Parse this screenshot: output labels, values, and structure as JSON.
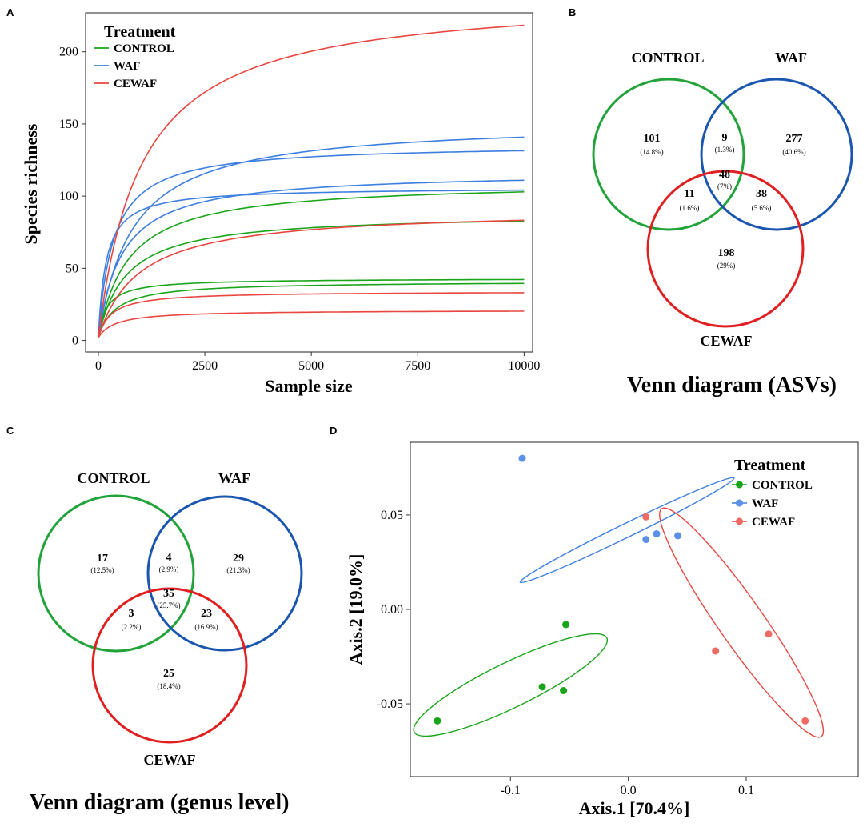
{
  "colors": {
    "control": "#1aa41a",
    "waf": "#3d7fe0",
    "cewaf": "#e8463f",
    "venn_control": "#22a33a",
    "venn_waf": "#1a56b0",
    "venn_cewaf": "#e02020"
  },
  "panels": {
    "a": "A",
    "b": "B",
    "c": "C",
    "d": "D"
  },
  "chart_data": [
    {
      "id": "A",
      "type": "line",
      "title": "",
      "xlabel": "Sample size",
      "ylabel": "Species richness",
      "xlim": [
        -300,
        10200
      ],
      "ylim": [
        -8,
        227
      ],
      "xticks": [
        "0",
        "2500",
        "5000",
        "7500",
        "10000"
      ],
      "xtick_values": [
        0,
        2500,
        5000,
        7500,
        10000
      ],
      "yticks": [
        "0",
        "50",
        "100",
        "150",
        "200"
      ],
      "ytick_values": [
        0,
        50,
        100,
        150,
        200
      ],
      "legend": {
        "title": "Treatment",
        "position": "top-left",
        "labels": [
          "CONTROL",
          "WAF",
          "CEWAF"
        ]
      },
      "series": [
        {
          "name": "CONTROL",
          "group": "control",
          "asymptote": 110,
          "half": 700,
          "end": 103
        },
        {
          "name": "CONTROL",
          "group": "control",
          "asymptote": 88,
          "half": 650,
          "end": 82
        },
        {
          "name": "CONTROL",
          "group": "control",
          "asymptote": 43,
          "half": 200,
          "end": 42
        },
        {
          "name": "CONTROL",
          "group": "control",
          "asymptote": 41,
          "half": 400,
          "end": 40
        },
        {
          "name": "WAF",
          "group": "waf",
          "asymptote": 152,
          "half": 800,
          "end": 141
        },
        {
          "name": "WAF",
          "group": "waf",
          "asymptote": 136,
          "half": 350,
          "end": 132
        },
        {
          "name": "WAF",
          "group": "waf",
          "asymptote": 117,
          "half": 550,
          "end": 111
        },
        {
          "name": "WAF",
          "group": "waf",
          "asymptote": 106,
          "half": 180,
          "end": 105
        },
        {
          "name": "CEWAF",
          "group": "cewaf",
          "asymptote": 240,
          "half": 1000,
          "end": 217
        },
        {
          "name": "CEWAF",
          "group": "cewaf",
          "asymptote": 91,
          "half": 950,
          "end": 83
        },
        {
          "name": "CEWAF",
          "group": "cewaf",
          "asymptote": 34,
          "half": 300,
          "end": 33
        },
        {
          "name": "CEWAF",
          "group": "cewaf",
          "asymptote": 21,
          "half": 400,
          "end": 20
        }
      ]
    },
    {
      "id": "B",
      "type": "venn",
      "title": "Venn diagram (ASVs)",
      "sets": [
        "CONTROL",
        "WAF",
        "CEWAF"
      ],
      "regions": [
        {
          "key": "control_only",
          "count": "101",
          "pct": "(14.8%)"
        },
        {
          "key": "control_waf",
          "count": "9",
          "pct": "(1.3%)"
        },
        {
          "key": "waf_only",
          "count": "277",
          "pct": "(40.6%)"
        },
        {
          "key": "all",
          "count": "48",
          "pct": "(7%)"
        },
        {
          "key": "control_cewaf",
          "count": "11",
          "pct": "(1.6%)"
        },
        {
          "key": "waf_cewaf",
          "count": "38",
          "pct": "(5.6%)"
        },
        {
          "key": "cewaf_only",
          "count": "198",
          "pct": "(29%)"
        }
      ]
    },
    {
      "id": "C",
      "type": "venn",
      "title": "Venn diagram (genus level)",
      "sets": [
        "CONTROL",
        "WAF",
        "CEWAF"
      ],
      "regions": [
        {
          "key": "control_only",
          "count": "17",
          "pct": "(12.5%)"
        },
        {
          "key": "control_waf",
          "count": "4",
          "pct": "(2.9%)"
        },
        {
          "key": "waf_only",
          "count": "29",
          "pct": "(21.3%)"
        },
        {
          "key": "all",
          "count": "35",
          "pct": "(25.7%)"
        },
        {
          "key": "control_cewaf",
          "count": "3",
          "pct": "(2.2%)"
        },
        {
          "key": "waf_cewaf",
          "count": "23",
          "pct": "(16.9%)"
        },
        {
          "key": "cewaf_only",
          "count": "25",
          "pct": "(18.4%)"
        }
      ]
    },
    {
      "id": "D",
      "type": "scatter",
      "title": "",
      "xlabel": "Axis.1 [70.4%]",
      "ylabel": "Axis.2 [19.0%]",
      "xlim": [
        -0.185,
        0.195
      ],
      "ylim": [
        -0.0885,
        0.0885
      ],
      "xticks": [
        "-0.1",
        "0.0",
        "0.1"
      ],
      "xtick_values": [
        -0.1,
        0.0,
        0.1
      ],
      "yticks": [
        "-0.05",
        "0.00",
        "0.05"
      ],
      "ytick_values": [
        -0.05,
        0.0,
        0.05
      ],
      "legend": {
        "title": "Treatment",
        "position": "top-right",
        "labels": [
          "CONTROL",
          "WAF",
          "CEWAF"
        ]
      },
      "series": [
        {
          "name": "CONTROL",
          "group": "control",
          "x": [
            -0.162,
            -0.073,
            -0.055,
            -0.053
          ],
          "y": [
            -0.059,
            -0.041,
            -0.043,
            -0.008
          ],
          "ellipse": {
            "cx": -0.1,
            "cy": -0.04,
            "rx": 0.091,
            "ry": 0.019,
            "angle": 26
          }
        },
        {
          "name": "WAF",
          "group": "waf",
          "x": [
            -0.09,
            0.015,
            0.024,
            0.042
          ],
          "y": [
            0.08,
            0.037,
            0.04,
            0.039
          ],
          "ellipse": {
            "cx": -0.001,
            "cy": 0.042,
            "rx": 0.101,
            "ry": 0.0058,
            "angle": 26
          }
        },
        {
          "name": "CEWAF",
          "group": "cewaf",
          "x": [
            0.015,
            0.074,
            0.119,
            0.15
          ],
          "y": [
            0.049,
            -0.022,
            -0.013,
            -0.059
          ],
          "ellipse": {
            "cx": 0.096,
            "cy": -0.007,
            "rx": 0.118,
            "ry": 0.019,
            "angle": -55
          }
        }
      ]
    }
  ]
}
